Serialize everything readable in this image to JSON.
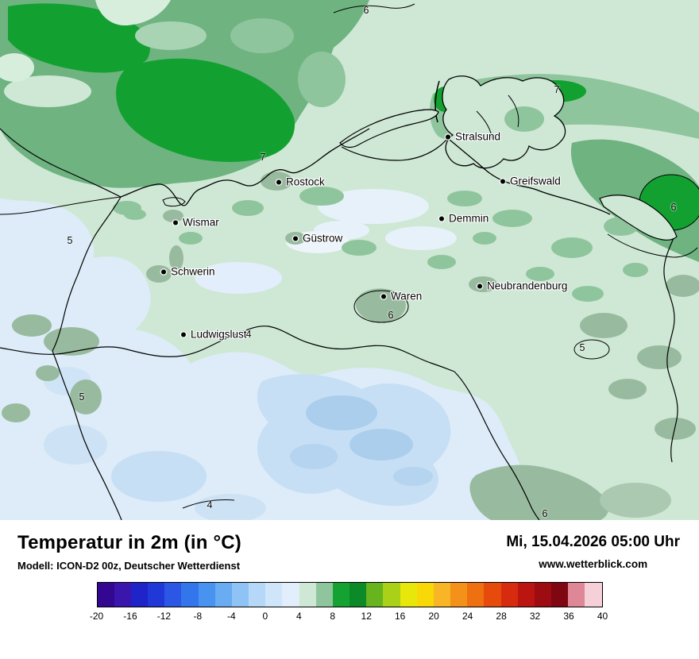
{
  "map": {
    "cities": [
      {
        "name": "Stralsund"
      },
      {
        "name": "Greifswald"
      },
      {
        "name": "Rostock"
      },
      {
        "name": "Wismar"
      },
      {
        "name": "Demmin"
      },
      {
        "name": "Güstrow"
      },
      {
        "name": "Schwerin"
      },
      {
        "name": "Neubrandenburg"
      },
      {
        "name": "Waren"
      },
      {
        "name": "Ludwigslust"
      }
    ],
    "contour_labels": [
      {
        "value": "6"
      },
      {
        "value": "7"
      },
      {
        "value": "7"
      },
      {
        "value": "6"
      },
      {
        "value": "5"
      },
      {
        "value": "6"
      },
      {
        "value": "4"
      },
      {
        "value": "5"
      },
      {
        "value": "5"
      },
      {
        "value": "4"
      },
      {
        "value": "6"
      }
    ],
    "colors": {
      "warm_sea_green": "#14a232",
      "medium_green": "#8fc59d",
      "sea_base_green": "#6fb381",
      "land_pale_green": "#cfe8d5",
      "cool_pale_blue": "#ddecf8",
      "cool_light_blue": "#c6dff4",
      "cool_medium_blue": "#abceec",
      "urban_gray_green": "#98bb9f"
    }
  },
  "footer": {
    "title": "Temperatur in 2m (in °C)",
    "model_line": "Modell: ICON-D2 00z, Deutscher Wetterdienst",
    "datetime": "Mi, 15.04.2026 05:00 Uhr",
    "website": "www.wetterblick.com"
  },
  "colorbar": {
    "unit": "°C",
    "min": -20,
    "max": 40,
    "step": 2,
    "tick_labels": [
      "-20",
      "-16",
      "-12",
      "-8",
      "-4",
      "0",
      "4",
      "8",
      "12",
      "16",
      "20",
      "24",
      "28",
      "32",
      "36",
      "40"
    ],
    "segment_colors": [
      "#33078f",
      "#3a16ad",
      "#1e24c8",
      "#2038d8",
      "#2b57e4",
      "#3376ec",
      "#4892f0",
      "#69acf2",
      "#90c3f5",
      "#b6d8f8",
      "#cfe5fa",
      "#e2eefb",
      "#cfe8d5",
      "#8fc59d",
      "#14a232",
      "#0c8a27",
      "#68b41e",
      "#aad018",
      "#e8e70c",
      "#f8d806",
      "#f8b526",
      "#f49119",
      "#ef7010",
      "#e64b0c",
      "#d72b10",
      "#ba1510",
      "#9c0c10",
      "#7f0712",
      "#de8796",
      "#f5d0d9"
    ]
  }
}
